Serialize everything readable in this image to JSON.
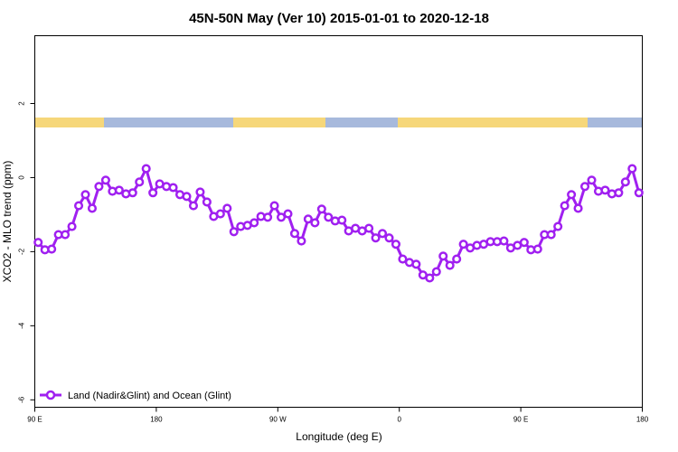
{
  "chart_data": {
    "type": "line",
    "title": "45N-50N May (Ver 10)   2015-01-01 to 2020-12-18",
    "x_label": "Longitude (deg E)",
    "y_label": "XCO2 - MLO trend (ppm)",
    "legend_position": "bottom-left",
    "xlim": [
      90,
      540
    ],
    "ylim": [
      -6.2,
      3.83
    ],
    "xticks": [
      {
        "value": 90,
        "label": "90 E"
      },
      180,
      {
        "value": 270,
        "label": "90 W"
      },
      {
        "value": 360,
        "label": "0"
      },
      {
        "value": 450,
        "label": "90 E"
      },
      {
        "value": 540,
        "label": "180"
      }
    ],
    "yticks": [
      -6,
      -4,
      -2,
      0,
      2
    ],
    "x": [
      92.5,
      97.5,
      102.5,
      107.5,
      112.5,
      117.5,
      122.5,
      127.5,
      132.5,
      137.5,
      142.5,
      147.5,
      152.5,
      157.5,
      162.5,
      167.5,
      172.5,
      177.5,
      182.5,
      187.5,
      192.5,
      197.5,
      202.5,
      207.5,
      212.5,
      217.5,
      222.5,
      227.5,
      232.5,
      237.5,
      242.5,
      247.5,
      252.5,
      257.5,
      262.5,
      267.5,
      272.5,
      277.5,
      282.5,
      287.5,
      292.5,
      297.5,
      302.5,
      307.5,
      312.5,
      317.5,
      322.5,
      327.5,
      332.5,
      337.5,
      342.5,
      347.5,
      352.5,
      357.5,
      362.5,
      367.5,
      372.5,
      377.5,
      382.5,
      387.5,
      392.5,
      397.5,
      402.5,
      407.5,
      412.5,
      417.5,
      422.5,
      427.5,
      432.5,
      437.5,
      442.5,
      447.5,
      452.5,
      457.5,
      462.5,
      467.5,
      472.5,
      477.5,
      482.5,
      487.5,
      492.5,
      497.5,
      502.5,
      507.5,
      512.5,
      517.5,
      522.5,
      527.5,
      532.5,
      537.5
    ],
    "series": [
      {
        "name": "Land (Nadir&Glint) and Ocean (Glint)",
        "color": "#a020f0",
        "values": [
          -1.75,
          -1.95,
          -1.93,
          -1.54,
          -1.54,
          -1.32,
          -0.76,
          -0.46,
          -0.83,
          -0.24,
          -0.07,
          -0.37,
          -0.34,
          -0.44,
          -0.41,
          -0.12,
          0.24,
          -0.41,
          -0.17,
          -0.24,
          -0.27,
          -0.46,
          -0.51,
          -0.76,
          -0.39,
          -0.66,
          -1.05,
          -0.98,
          -0.83,
          -1.46,
          -1.32,
          -1.29,
          -1.22,
          -1.05,
          -1.07,
          -0.76,
          -1.07,
          -0.98,
          -1.51,
          -1.71,
          -1.12,
          -1.22,
          -0.85,
          -1.07,
          -1.17,
          -1.15,
          -1.44,
          -1.37,
          -1.44,
          -1.37,
          -1.63,
          -1.51,
          -1.63,
          -1.8,
          -2.2,
          -2.29,
          -2.34,
          -2.63,
          -2.71,
          -2.54,
          -2.12,
          -2.37,
          -2.2,
          -1.8,
          -1.9,
          -1.83,
          -1.8,
          -1.73,
          -1.73,
          -1.71,
          -1.9,
          -1.83,
          -1.75,
          -1.95,
          -1.93,
          -1.54,
          -1.54,
          -1.32,
          -0.76,
          -0.46,
          -0.83,
          -0.24,
          -0.07,
          -0.37,
          -0.34,
          -0.44,
          -0.41,
          -0.12,
          0.24,
          -0.41
        ]
      }
    ]
  }
}
